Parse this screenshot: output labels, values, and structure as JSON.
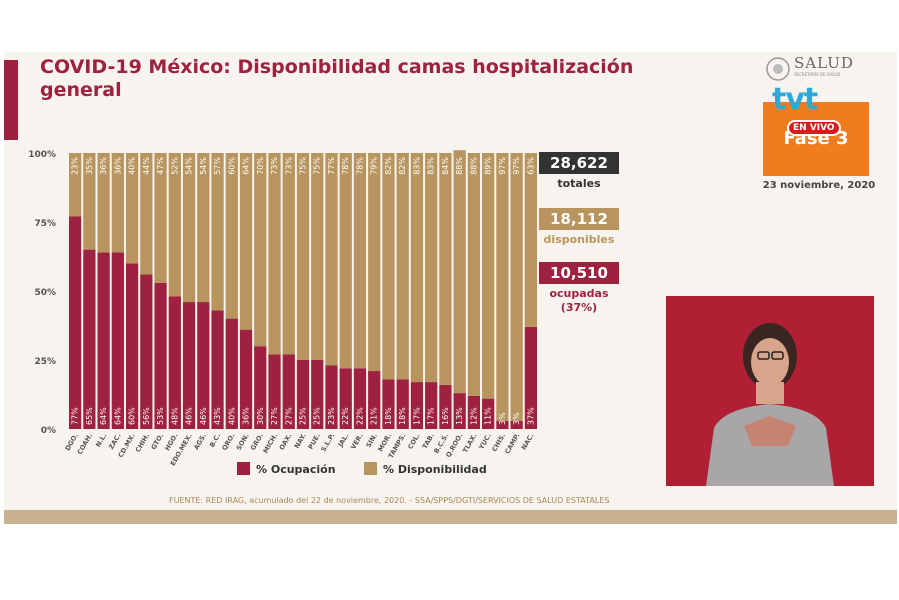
{
  "title": "COVID-19 México: Disponibilidad camas hospitalización general",
  "logo": {
    "text": "SALUD",
    "subtext": "SECRETARÍA DE SALUD"
  },
  "broadcast": {
    "channel": "tvt",
    "live_badge": "EN VIVO",
    "phase": "Fase 3"
  },
  "date": "23 noviembre, 2020",
  "totals": {
    "total_value": "28,622",
    "total_label": "totales",
    "available_value": "18,112",
    "available_label": "disponibles",
    "occupied_value": "10,510",
    "occupied_label": "ocupadas",
    "occupied_pct": "(37%)"
  },
  "source": "FUENTE: RED IRAG, acumulado del 22 de noviembre, 2020.  -  SSA/SPPS/DGTI/SERVICIOS DE SALUD ESTATALES",
  "colors": {
    "occupied": "#9e2140",
    "available": "#b8955e",
    "total_box": "#333333",
    "title": "#9e2140",
    "interpreter_bg": "#b01f33"
  },
  "chart_data": {
    "type": "bar",
    "stacked": true,
    "categories": [
      "DGO.",
      "COAH.",
      "N.L.",
      "ZAC.",
      "CD.MX.",
      "CHIH.",
      "GTO.",
      "HGO.",
      "EDO.MEX.",
      "AGS.",
      "B.C.",
      "QRO.",
      "SON.",
      "GRO.",
      "MICH.",
      "OAX.",
      "NAY.",
      "PUE.",
      "S.L.P.",
      "JAL.",
      "VER.",
      "SIN.",
      "MOR.",
      "TAMPS.",
      "COL.",
      "TAB.",
      "B.C.S.",
      "Q.ROO.",
      "TLAX.",
      "YUC.",
      "CHIS.",
      "CAMP.",
      "NAC."
    ],
    "series": [
      {
        "name": "% Ocupación",
        "values": [
          77,
          65,
          64,
          64,
          60,
          56,
          53,
          48,
          46,
          46,
          43,
          40,
          36,
          30,
          27,
          27,
          25,
          25,
          23,
          22,
          22,
          21,
          18,
          18,
          17,
          17,
          16,
          13,
          12,
          11,
          3,
          3,
          37
        ],
        "labels": [
          "77%",
          "65%",
          "64%",
          "64%",
          "60%",
          "56%",
          "53%",
          "48%",
          "46%",
          "46%",
          "43%",
          "40%",
          "36%",
          "30%",
          "27%",
          "27%",
          "25%",
          "25%",
          "23%",
          "22%",
          "22%",
          "21%",
          "18%",
          "18%",
          "17%",
          "17%",
          "16%",
          "13%",
          "12%",
          "11%",
          "3%",
          "3%",
          "37%"
        ]
      },
      {
        "name": "% Disponibilidad",
        "values": [
          23,
          35,
          36,
          36,
          40,
          44,
          47,
          52,
          54,
          54,
          57,
          60,
          64,
          70,
          73,
          73,
          75,
          75,
          77,
          78,
          78,
          79,
          82,
          82,
          83,
          83,
          84,
          88,
          88,
          89,
          97,
          97,
          63
        ],
        "labels": [
          "23%",
          "35%",
          "36%",
          "36%",
          "40%",
          "44%",
          "47%",
          "52%",
          "54%",
          "54%",
          "57%",
          "60%",
          "64%",
          "70%",
          "73%",
          "73%",
          "75%",
          "75%",
          "77%",
          "78%",
          "78%",
          "79%",
          "82%",
          "82%",
          "83%",
          "83%",
          "84%",
          "88%",
          "88%",
          "89%",
          "97%",
          "97%",
          "63%"
        ]
      }
    ],
    "yticks": [
      "0%",
      "25%",
      "50%",
      "75%",
      "100%"
    ],
    "ylim": [
      0,
      100
    ],
    "legend_position": "bottom"
  }
}
